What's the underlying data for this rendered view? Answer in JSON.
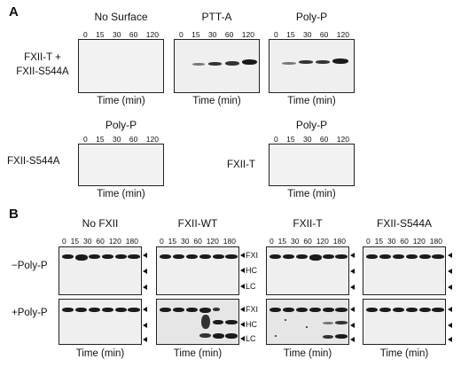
{
  "panel_a": {
    "letter": "A",
    "row1_label_line1": "FXII-T +",
    "row1_label_line2": "FXII-S544A",
    "row2_left_label": "FXII-S544A",
    "row2_right_label": "FXII-T",
    "blots": [
      {
        "title": "No Surface"
      },
      {
        "title": "PTT-A"
      },
      {
        "title": "Poly-P"
      },
      {
        "title": "Poly-P"
      },
      {
        "title": "Poly-P"
      }
    ],
    "ticks": [
      "0",
      "15",
      "30",
      "60",
      "120"
    ],
    "time_label": "Time (min)"
  },
  "panel_b": {
    "letter": "B",
    "row_minus_label": "−Poly-P",
    "row_plus_label": "+Poly-P",
    "ticks": [
      "0",
      "15",
      "30",
      "60",
      "120",
      "180"
    ],
    "time_label": "Time (min)",
    "columns": [
      {
        "title": "No FXII"
      },
      {
        "title": "FXII-WT"
      },
      {
        "title": "FXII-T"
      },
      {
        "title": "FXII-S544A"
      }
    ],
    "markers": {
      "fxi": "FXI",
      "hc": "HC",
      "lc": "LC"
    }
  }
}
